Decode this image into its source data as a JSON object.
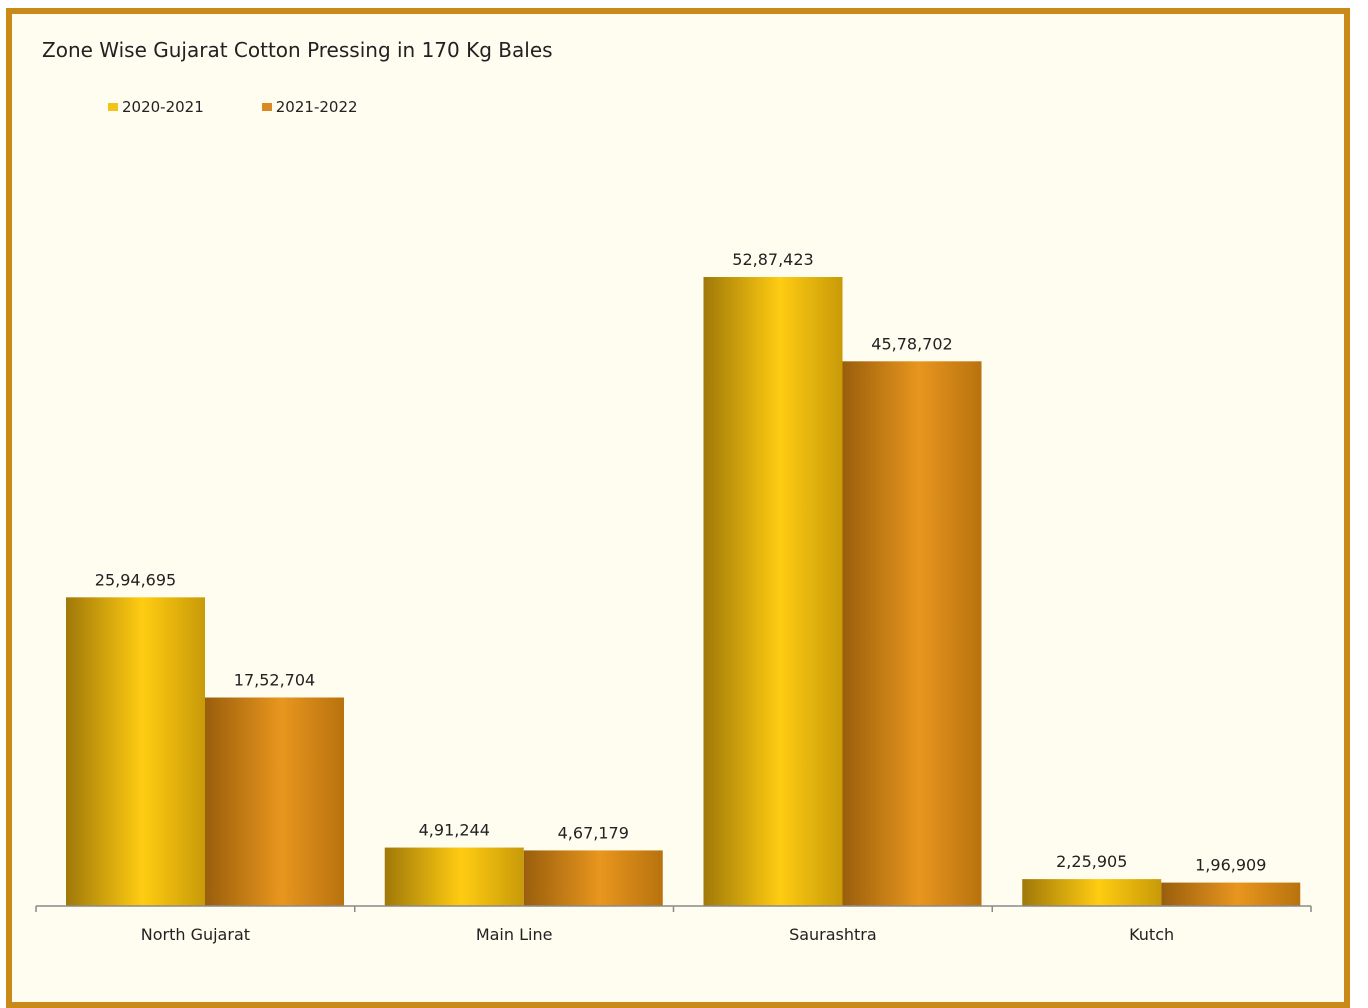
{
  "chart_data": {
    "type": "bar",
    "title": "Zone Wise Gujarat Cotton Pressing in 170 Kg Bales",
    "categories": [
      "North Gujarat",
      "Main Line",
      "Saurashtra",
      "Kutch"
    ],
    "series": [
      {
        "name": "2020-2021",
        "values": [
          2594695,
          491244,
          5287423,
          225905
        ],
        "labels": [
          "25,94,695",
          "4,91,244",
          "52,87,423",
          "2,25,905"
        ],
        "color": "#f2c31a"
      },
      {
        "name": "2021-2022",
        "values": [
          1752704,
          467179,
          4578702,
          196909
        ],
        "labels": [
          "17,52,704",
          "4,67,179",
          "45,78,702",
          "1,96,909"
        ],
        "color": "#d98a22"
      }
    ],
    "ylim": [
      0,
      6000000
    ],
    "grid": false,
    "legend": "top-left"
  }
}
